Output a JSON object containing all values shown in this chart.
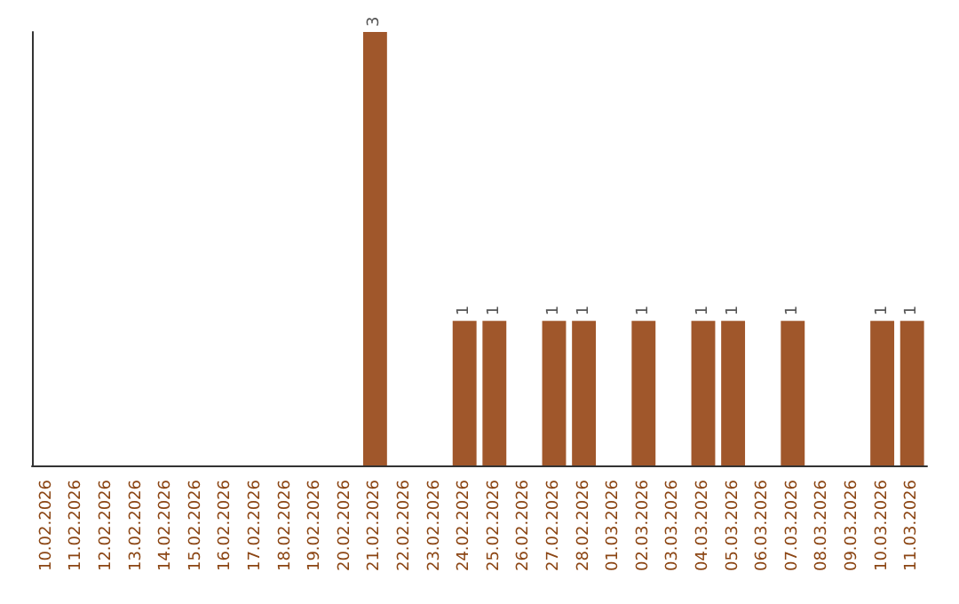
{
  "chart_data": {
    "type": "bar",
    "categories": [
      "10.02.2026",
      "11.02.2026",
      "12.02.2026",
      "13.02.2026",
      "14.02.2026",
      "15.02.2026",
      "16.02.2026",
      "17.02.2026",
      "18.02.2026",
      "19.02.2026",
      "20.02.2026",
      "21.02.2026",
      "22.02.2026",
      "23.02.2026",
      "24.02.2026",
      "25.02.2026",
      "26.02.2026",
      "27.02.2026",
      "28.02.2026",
      "01.03.2026",
      "02.03.2026",
      "03.03.2026",
      "04.03.2026",
      "05.03.2026",
      "06.03.2026",
      "07.03.2026",
      "08.03.2026",
      "09.03.2026",
      "10.03.2026",
      "11.03.2026"
    ],
    "values": [
      0,
      0,
      0,
      0,
      0,
      0,
      0,
      0,
      0,
      0,
      0,
      3,
      0,
      0,
      1,
      1,
      0,
      1,
      1,
      0,
      1,
      0,
      1,
      1,
      0,
      1,
      0,
      0,
      1,
      1
    ],
    "value_labels": [
      null,
      null,
      null,
      null,
      null,
      null,
      null,
      null,
      null,
      null,
      null,
      "3",
      null,
      null,
      "1",
      "1",
      null,
      "1",
      "1",
      null,
      "1",
      null,
      "1",
      "1",
      null,
      "1",
      null,
      null,
      "1",
      "1"
    ],
    "color": "#a0572b",
    "tick_labels": "x"
  }
}
